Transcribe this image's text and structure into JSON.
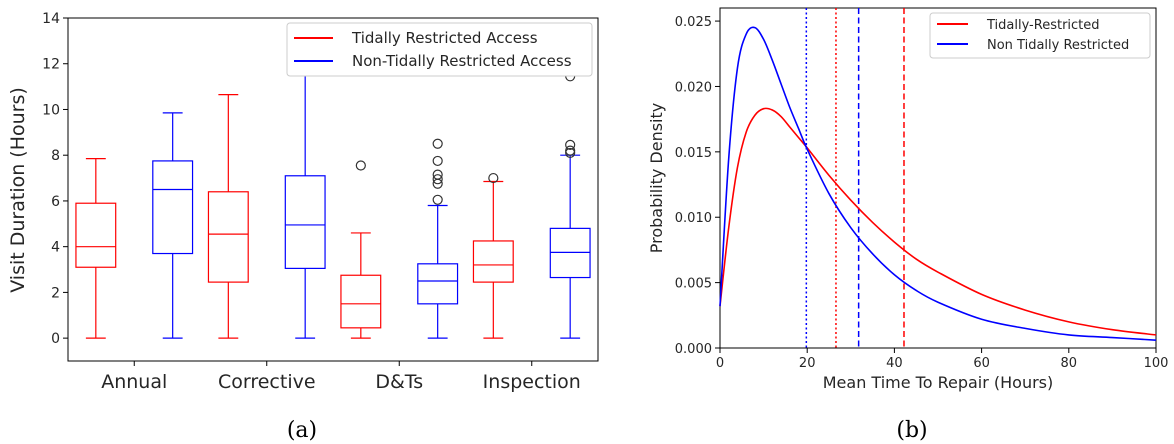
{
  "chart_data": [
    {
      "type": "box",
      "panel_label": "(a)",
      "ylabel": "Visit Duration (Hours)",
      "ylim": [
        -1,
        14
      ],
      "yticks": [
        0,
        2,
        4,
        6,
        8,
        10,
        12,
        14
      ],
      "categories": [
        "Annual",
        "Corrective",
        "D&Ts",
        "Inspection"
      ],
      "legend_position": "top-right",
      "colors": {
        "tidal": "#ff0000",
        "nontidal": "#0000ff"
      },
      "series": [
        {
          "name": "Tidally Restricted Access",
          "key": "tidal",
          "boxes": [
            {
              "category": "Annual",
              "whisker_low": 0,
              "q1": 3.1,
              "median": 4.0,
              "q3": 5.9,
              "whisker_high": 7.85,
              "outliers": []
            },
            {
              "category": "Corrective",
              "whisker_low": 0,
              "q1": 2.45,
              "median": 4.55,
              "q3": 6.4,
              "whisker_high": 10.65,
              "outliers": []
            },
            {
              "category": "D&Ts",
              "whisker_low": 0,
              "q1": 0.45,
              "median": 1.5,
              "q3": 2.75,
              "whisker_high": 4.6,
              "outliers": [
                7.55
              ]
            },
            {
              "category": "Inspection",
              "whisker_low": 0,
              "q1": 2.45,
              "median": 3.2,
              "q3": 4.25,
              "whisker_high": 6.85,
              "outliers": [
                7.0
              ]
            }
          ]
        },
        {
          "name": "Non-Tidally Restricted Access",
          "key": "nontidal",
          "boxes": [
            {
              "category": "Annual",
              "whisker_low": 0,
              "q1": 3.7,
              "median": 6.5,
              "q3": 7.75,
              "whisker_high": 9.85,
              "outliers": []
            },
            {
              "category": "Corrective",
              "whisker_low": 0,
              "q1": 3.05,
              "median": 4.95,
              "q3": 7.1,
              "whisker_high": 12.35,
              "outliers": [
                13.35
              ]
            },
            {
              "category": "D&Ts",
              "whisker_low": 0,
              "q1": 1.5,
              "median": 2.5,
              "q3": 3.25,
              "whisker_high": 5.8,
              "outliers": [
                6.05,
                6.75,
                6.95,
                7.15,
                7.75,
                8.5
              ]
            },
            {
              "category": "Inspection",
              "whisker_low": 0,
              "q1": 2.65,
              "median": 3.75,
              "q3": 4.8,
              "whisker_high": 8.0,
              "outliers": [
                8.1,
                8.2,
                8.45,
                11.45
              ]
            }
          ]
        }
      ]
    },
    {
      "type": "line",
      "panel_label": "(b)",
      "xlabel": "Mean Time To Repair (Hours)",
      "ylabel": "Probability Density",
      "xlim": [
        0,
        100
      ],
      "ylim": [
        0,
        0.026
      ],
      "xticks": [
        0,
        20,
        40,
        60,
        80,
        100
      ],
      "yticks": [
        0.0,
        0.005,
        0.01,
        0.015,
        0.02,
        0.025
      ],
      "ytick_labels": [
        "0.000",
        "0.005",
        "0.010",
        "0.015",
        "0.020",
        "0.025"
      ],
      "legend_position": "top-right",
      "series": [
        {
          "name": "Tidally-Restricted",
          "color": "#ff0000",
          "x": [
            0,
            2,
            4,
            6,
            8,
            10,
            12,
            14,
            16,
            18,
            20,
            25,
            30,
            35,
            40,
            45,
            50,
            60,
            70,
            80,
            90,
            100
          ],
          "y": [
            0.0032,
            0.0092,
            0.0138,
            0.0165,
            0.0178,
            0.0183,
            0.0182,
            0.0177,
            0.0169,
            0.0161,
            0.0153,
            0.0132,
            0.0113,
            0.0096,
            0.0081,
            0.0068,
            0.0058,
            0.0041,
            0.0029,
            0.002,
            0.0014,
            0.001
          ]
        },
        {
          "name": "Non Tidally Restricted",
          "color": "#0000ff",
          "x": [
            0,
            2,
            4,
            6,
            8,
            10,
            12,
            14,
            16,
            18,
            20,
            25,
            30,
            35,
            40,
            45,
            50,
            60,
            70,
            80,
            90,
            100
          ],
          "y": [
            0.0032,
            0.0145,
            0.0214,
            0.024,
            0.0245,
            0.0236,
            0.022,
            0.0202,
            0.0184,
            0.0168,
            0.0152,
            0.0118,
            0.0092,
            0.0072,
            0.0056,
            0.0044,
            0.0035,
            0.0022,
            0.0015,
            0.001,
            0.0008,
            0.0006
          ]
        }
      ],
      "vlines": [
        {
          "x": 19.8,
          "color": "#0000ff",
          "style": "dotted"
        },
        {
          "x": 26.6,
          "color": "#ff0000",
          "style": "dotted"
        },
        {
          "x": 31.8,
          "color": "#0000ff",
          "style": "dashed"
        },
        {
          "x": 42.2,
          "color": "#ff0000",
          "style": "dashed"
        }
      ]
    }
  ]
}
